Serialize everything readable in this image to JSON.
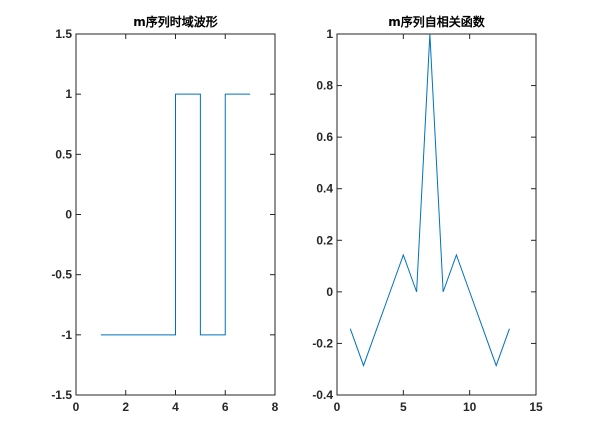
{
  "chart_data": [
    {
      "type": "line",
      "line_style": "step",
      "title": "m序列时域波形",
      "xlabel": "",
      "ylabel": "",
      "xlim": [
        0,
        8
      ],
      "ylim": [
        -1.5,
        1.5
      ],
      "xticks": [
        0,
        2,
        4,
        6,
        8
      ],
      "xtick_labels": [
        "0",
        "2",
        "4",
        "6",
        "8"
      ],
      "yticks": [
        -1.5,
        -1,
        -0.5,
        0,
        0.5,
        1,
        1.5
      ],
      "ytick_labels": [
        "-1.5",
        "-1",
        "-0.5",
        "0",
        "0.5",
        "1",
        "1.5"
      ],
      "grid": false,
      "color": "#0072BD",
      "series": [
        {
          "x": [
            1,
            2,
            3,
            4,
            5,
            6,
            7
          ],
          "values": [
            -1,
            -1,
            -1,
            1,
            -1,
            1,
            1
          ]
        }
      ]
    },
    {
      "type": "line",
      "title": "m序列自相关函数",
      "xlabel": "",
      "ylabel": "",
      "xlim": [
        0,
        15
      ],
      "ylim": [
        -0.4,
        1
      ],
      "xticks": [
        0,
        5,
        10,
        15
      ],
      "xtick_labels": [
        "0",
        "5",
        "10",
        "15"
      ],
      "yticks": [
        -0.4,
        -0.2,
        0,
        0.2,
        0.4,
        0.6,
        0.8,
        1
      ],
      "ytick_labels": [
        "-0.4",
        "-0.2",
        "0",
        "0.2",
        "0.4",
        "0.6",
        "0.8",
        "1"
      ],
      "grid": false,
      "color": "#0072BD",
      "series": [
        {
          "x": [
            1,
            2,
            3,
            4,
            5,
            6,
            7,
            8,
            9,
            10,
            11,
            12,
            13
          ],
          "values": [
            -0.143,
            -0.286,
            -0.143,
            0,
            0.143,
            0,
            1,
            0,
            0.143,
            0,
            -0.143,
            -0.286,
            -0.143
          ]
        }
      ]
    }
  ]
}
